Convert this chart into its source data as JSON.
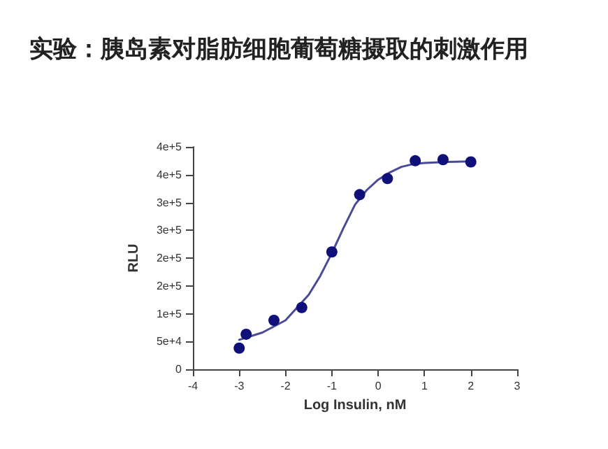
{
  "chart_data": {
    "type": "scatter",
    "title": "实验：胰岛素对脂肪细胞葡萄糖摄取的刺激作用",
    "xlabel": "Log Insulin, nM",
    "ylabel": "RLU",
    "xlim": [
      -4,
      3
    ],
    "xticks": [
      -4,
      -3,
      -2,
      -1,
      0,
      1,
      2,
      3
    ],
    "ylim": [
      0,
      400000
    ],
    "yticks": [
      0,
      {
        "value": 50000,
        "label": "5e+4"
      },
      {
        "value": 100000,
        "label": "1e+5"
      },
      {
        "value": 150000,
        "label": "2e+5"
      },
      {
        "value": 200000,
        "label": "2e+5"
      },
      {
        "value": 250000,
        "label": "3e+5"
      },
      {
        "value": 300000,
        "label": "3e+5"
      },
      {
        "value": 350000,
        "label": "4e+5"
      },
      {
        "value": 400000,
        "label": "4e+5"
      }
    ],
    "series": [
      {
        "color": "#10107a",
        "marker": "circle",
        "x": [
          -3,
          -2.85,
          -2.25,
          -1.65,
          -1,
          -0.4,
          0.2,
          0.8,
          1.4,
          2
        ],
        "values": [
          38000,
          63000,
          88000,
          111000,
          211000,
          314000,
          343000,
          375000,
          377000,
          373000
        ]
      },
      {
        "type": "line",
        "color": "#4a4a9a",
        "marker": "none",
        "line_style": "solid",
        "x": [
          -3,
          -2.5,
          -2,
          -1.5,
          -1.25,
          -1,
          -0.75,
          -0.5,
          -0.25,
          0,
          0.25,
          0.5,
          0.75,
          1,
          1.5,
          2
        ],
        "values": [
          53000,
          66000,
          88000,
          134000,
          168000,
          209000,
          254000,
          296000,
          322000,
          341000,
          354000,
          364000,
          369000,
          371000,
          373000,
          374000
        ]
      }
    ]
  }
}
